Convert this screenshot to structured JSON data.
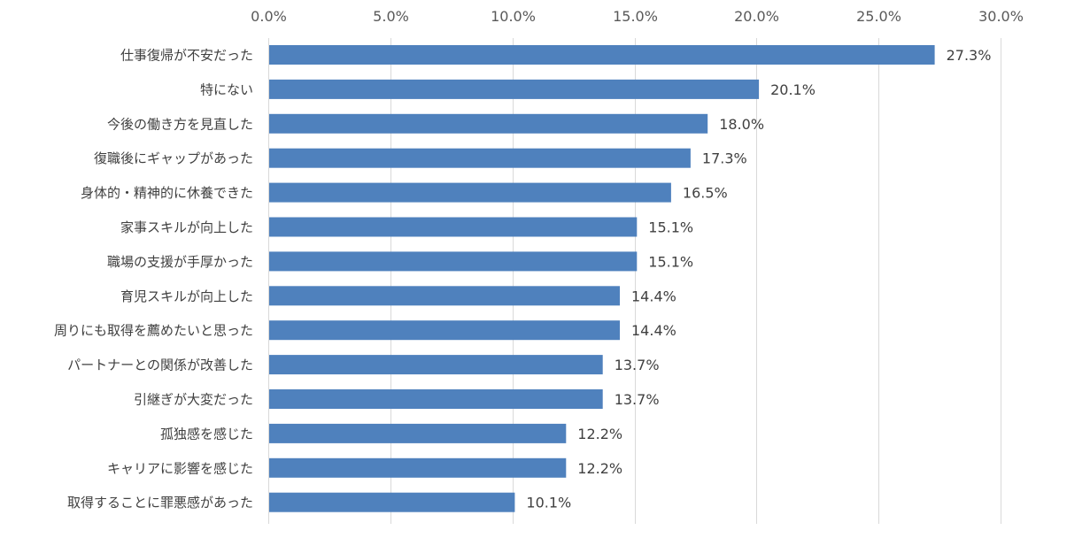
{
  "chart_data": {
    "type": "bar",
    "orientation": "horizontal",
    "title": "",
    "xlabel": "",
    "ylabel": "",
    "xlim": [
      0,
      30
    ],
    "x_ticks": [
      "0.0%",
      "5.0%",
      "10.0%",
      "15.0%",
      "20.0%",
      "25.0%",
      "30.0%"
    ],
    "x_tick_values": [
      0,
      5,
      10,
      15,
      20,
      25,
      30
    ],
    "x_axis_position": "top",
    "grid": true,
    "legend": "none",
    "bar_color": "#4f81bd",
    "categories": [
      "仕事復帰が不安だった",
      "特にない",
      "今後の働き方を見直した",
      "復職後にギャップがあった",
      "身体的・精神的に休養できた",
      "家事スキルが向上した",
      "職場の支援が手厚かった",
      "育児スキルが向上した",
      "周りにも取得を薦めたいと思った",
      "パートナーとの関係が改善した",
      "引継ぎが大変だった",
      "孤独感を感じた",
      "キャリアに影響を感じた",
      "取得することに罪悪感があった"
    ],
    "values": [
      27.3,
      20.1,
      18.0,
      17.3,
      16.5,
      15.1,
      15.1,
      14.4,
      14.4,
      13.7,
      13.7,
      12.2,
      12.2,
      10.1
    ],
    "value_labels": [
      "27.3%",
      "20.1%",
      "18.0%",
      "17.3%",
      "16.5%",
      "15.1%",
      "15.1%",
      "14.4%",
      "14.4%",
      "13.7%",
      "13.7%",
      "12.2%",
      "12.2%",
      "10.1%"
    ]
  }
}
